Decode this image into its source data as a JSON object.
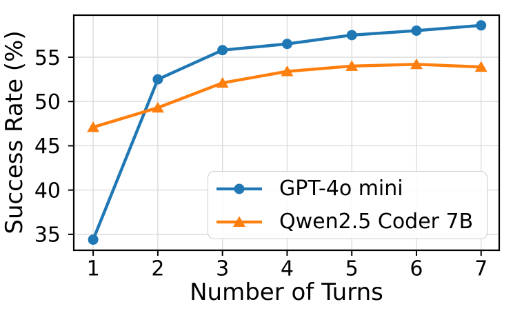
{
  "chart_data": {
    "type": "line",
    "title": "",
    "xlabel": "Number of Turns",
    "ylabel": "Success Rate (%)",
    "x": [
      1,
      2,
      3,
      4,
      5,
      6,
      7
    ],
    "series": [
      {
        "name": "GPT-4o mini",
        "color": "#1f77b4",
        "marker": "circle",
        "values": [
          34.4,
          52.5,
          55.8,
          56.5,
          57.5,
          58.0,
          58.6
        ]
      },
      {
        "name": "Qwen2.5 Coder 7B",
        "color": "#ff7f0e",
        "marker": "triangle",
        "values": [
          47.1,
          49.3,
          52.1,
          53.4,
          54.0,
          54.2,
          53.9
        ]
      }
    ],
    "xticks": [
      1,
      2,
      3,
      4,
      5,
      6,
      7
    ],
    "yticks": [
      35,
      40,
      45,
      50,
      55
    ],
    "xlim": [
      0.7,
      7.28
    ],
    "ylim": [
      33.2,
      59.75
    ],
    "grid": true,
    "grid_color": "#dcdcdc",
    "spine_color": "#000000",
    "tick_label_color": "#000000",
    "legend_position": "lower right inside"
  }
}
